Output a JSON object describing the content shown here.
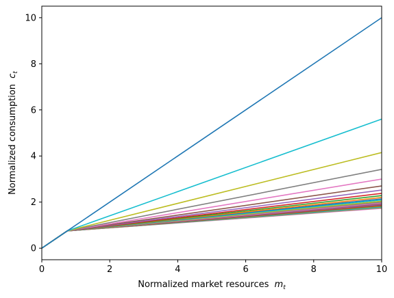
{
  "chart_data": {
    "type": "line",
    "xlabel": "Normalized market resources",
    "xlabel_sub": "m",
    "xlabel_subscript": "t",
    "ylabel": "Normalized consumption",
    "ylabel_sub": "c",
    "ylabel_subscript": "t",
    "xlim": [
      0,
      10
    ],
    "ylim": [
      -0.5,
      10.5
    ],
    "xticks": [
      "0",
      "2",
      "4",
      "6",
      "8",
      "10"
    ],
    "yticks": [
      "0",
      "2",
      "4",
      "6",
      "8",
      "10"
    ],
    "grid": false,
    "kink": [
      0.75,
      0.75
    ],
    "series_end_values": [
      10.0,
      5.6,
      4.15,
      3.42,
      3.0,
      2.7,
      2.52,
      2.38,
      2.28,
      2.2,
      2.14,
      2.09,
      2.04,
      2.0,
      1.96,
      1.93,
      1.9,
      1.87,
      1.85,
      1.83,
      1.81,
      1.79,
      1.77,
      1.75,
      1.73
    ],
    "colors": [
      "#1f77b4",
      "#17becf",
      "#bcbd22",
      "#7f7f7f",
      "#e377c2",
      "#8c564b",
      "#9467bd",
      "#d62728",
      "#2ca02c",
      "#ff7f0e",
      "#1f77b4",
      "#17becf",
      "#bcbd22",
      "#7f7f7f",
      "#e377c2",
      "#8c564b",
      "#9467bd",
      "#d62728",
      "#2ca02c",
      "#ff7f0e",
      "#1f77b4",
      "#17becf",
      "#bcbd22",
      "#7f7f7f",
      "#e377c2"
    ]
  }
}
